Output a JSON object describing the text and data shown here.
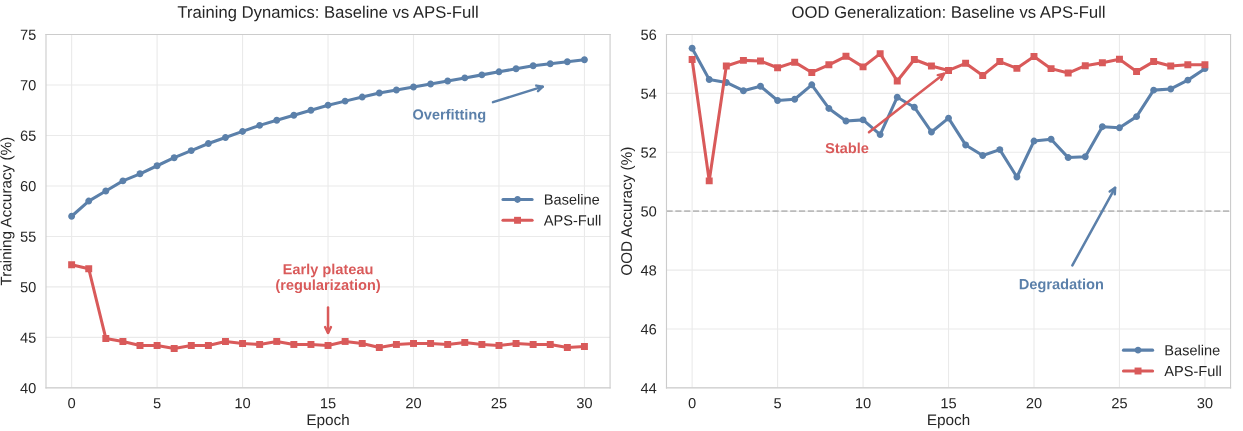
{
  "chart_data": [
    {
      "type": "line",
      "title": "Training Dynamics: Baseline vs APS-Full",
      "xlabel": "Epoch",
      "ylabel": "Training Accuracy (%)",
      "x": [
        0,
        1,
        2,
        3,
        4,
        5,
        6,
        7,
        8,
        9,
        10,
        11,
        12,
        13,
        14,
        15,
        16,
        17,
        18,
        19,
        20,
        21,
        22,
        23,
        24,
        25,
        26,
        27,
        28,
        29,
        30
      ],
      "series": [
        {
          "name": "Baseline",
          "color": "#5b80aa",
          "marker": "circle",
          "values": [
            57.0,
            58.5,
            59.5,
            60.5,
            61.2,
            62.0,
            62.8,
            63.5,
            64.2,
            64.8,
            65.4,
            66.0,
            66.5,
            67.0,
            67.5,
            68.0,
            68.4,
            68.8,
            69.2,
            69.5,
            69.8,
            70.1,
            70.4,
            70.7,
            71.0,
            71.3,
            71.6,
            71.9,
            72.1,
            72.3,
            72.5
          ]
        },
        {
          "name": "APS-Full",
          "color": "#d95a5a",
          "marker": "square",
          "values": [
            52.2,
            51.8,
            44.9,
            44.6,
            44.2,
            44.2,
            43.9,
            44.2,
            44.2,
            44.6,
            44.4,
            44.3,
            44.6,
            44.3,
            44.3,
            44.2,
            44.6,
            44.4,
            44.0,
            44.3,
            44.4,
            44.4,
            44.3,
            44.5,
            44.3,
            44.2,
            44.4,
            44.3,
            44.3,
            44.0,
            44.1
          ]
        }
      ],
      "annotations": [
        "Overfitting",
        "Early plateau\n(regularization)"
      ],
      "xlim": [
        -1.5,
        31.5
      ],
      "ylim": [
        40,
        75
      ],
      "xticks": [
        0,
        5,
        10,
        15,
        20,
        25,
        30
      ],
      "yticks": [
        40,
        45,
        50,
        55,
        60,
        65,
        70,
        75
      ],
      "grid": true,
      "legend": "right",
      "line_style": "solid"
    },
    {
      "type": "line",
      "title": "OOD Generalization: Baseline vs APS-Full",
      "xlabel": "Epoch",
      "ylabel": "OOD Accuracy (%)",
      "x": [
        0,
        1,
        2,
        3,
        4,
        5,
        6,
        7,
        8,
        9,
        10,
        11,
        12,
        13,
        14,
        15,
        16,
        17,
        18,
        19,
        20,
        21,
        22,
        23,
        24,
        25,
        26,
        27,
        28,
        29,
        30
      ],
      "series": [
        {
          "name": "Baseline",
          "color": "#5b80aa",
          "marker": "circle",
          "values": [
            55.53,
            54.47,
            54.37,
            54.09,
            54.24,
            53.76,
            53.8,
            54.29,
            53.49,
            53.06,
            53.1,
            52.6,
            53.87,
            53.53,
            52.69,
            53.16,
            52.25,
            51.89,
            52.09,
            51.16,
            52.38,
            52.44,
            51.82,
            51.85,
            52.87,
            52.83,
            53.21,
            54.11,
            54.15,
            54.45,
            54.84
          ]
        },
        {
          "name": "APS-Full",
          "color": "#d95a5a",
          "marker": "square",
          "values": [
            55.15,
            51.03,
            54.93,
            55.12,
            55.1,
            54.87,
            55.06,
            54.71,
            54.97,
            55.26,
            54.9,
            55.35,
            54.42,
            55.15,
            54.93,
            54.78,
            55.02,
            54.61,
            55.08,
            54.85,
            55.25,
            54.84,
            54.69,
            54.94,
            55.04,
            55.16,
            54.74,
            55.08,
            54.93,
            54.97,
            54.97
          ]
        }
      ],
      "annotations": [
        "Degradation",
        {
          "text": "Stable",
          "x": 15,
          "y": 54.78
        }
      ],
      "ref_lines": [
        {
          "axis": "y",
          "value": 50,
          "color": "#bbbbbb",
          "line_style": "dashed"
        }
      ],
      "xlim": [
        -1.5,
        31.5
      ],
      "ylim": [
        44,
        56
      ],
      "xticks": [
        0,
        5,
        10,
        15,
        20,
        25,
        30
      ],
      "yticks": [
        44,
        46,
        48,
        50,
        52,
        54,
        56
      ],
      "grid": true,
      "legend": "bottom right",
      "line_style": "solid"
    }
  ]
}
